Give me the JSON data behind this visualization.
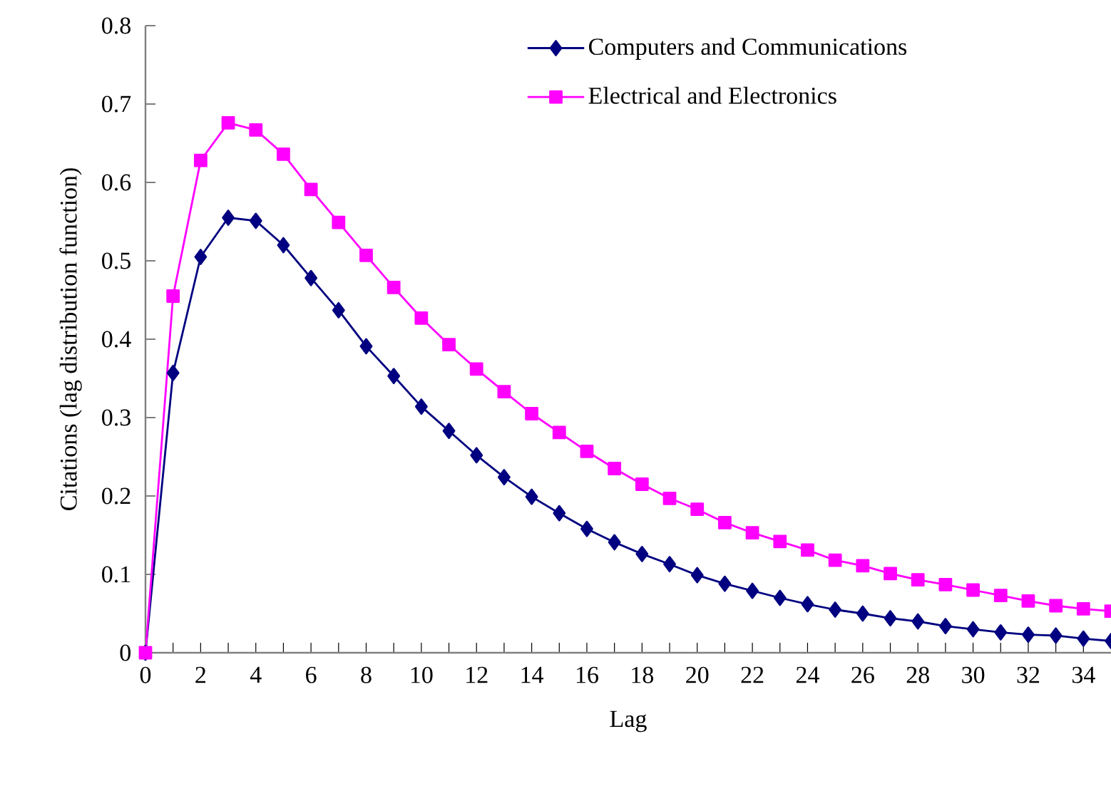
{
  "chart_data": {
    "type": "line",
    "xlabel": "Lag",
    "ylabel": "Citations  (lag distribution function)",
    "x": [
      0,
      1,
      2,
      3,
      4,
      5,
      6,
      7,
      8,
      9,
      10,
      11,
      12,
      13,
      14,
      15,
      16,
      17,
      18,
      19,
      20,
      21,
      22,
      23,
      24,
      25,
      26,
      27,
      28,
      29,
      30,
      31,
      32,
      33,
      34,
      35
    ],
    "series": [
      {
        "name": "Computers and Communications",
        "color": "#000080",
        "marker": "diamond",
        "values": [
          0,
          0.357,
          0.505,
          0.555,
          0.551,
          0.52,
          0.478,
          0.437,
          0.391,
          0.353,
          0.314,
          0.283,
          0.252,
          0.224,
          0.199,
          0.178,
          0.158,
          0.141,
          0.126,
          0.113,
          0.099,
          0.088,
          0.079,
          0.07,
          0.062,
          0.055,
          0.05,
          0.044,
          0.04,
          0.034,
          0.03,
          0.026,
          0.023,
          0.022,
          0.018,
          0.015
        ]
      },
      {
        "name": "Electrical and Electronics",
        "color": "#ff00ff",
        "marker": "square",
        "values": [
          0,
          0.455,
          0.628,
          0.676,
          0.667,
          0.636,
          0.591,
          0.549,
          0.507,
          0.466,
          0.427,
          0.393,
          0.362,
          0.333,
          0.305,
          0.281,
          0.257,
          0.235,
          0.215,
          0.197,
          0.183,
          0.166,
          0.153,
          0.142,
          0.131,
          0.118,
          0.111,
          0.101,
          0.093,
          0.087,
          0.08,
          0.073,
          0.066,
          0.06,
          0.056,
          0.053
        ]
      }
    ],
    "xlim": [
      0,
      35
    ],
    "ylim": [
      0,
      0.8
    ],
    "xticks": [
      0,
      {
        "value": 1,
        "label": null
      },
      2,
      {
        "value": 3,
        "label": null
      },
      4,
      {
        "value": 5,
        "label": null
      },
      6,
      {
        "value": 7,
        "label": null
      },
      8,
      {
        "value": 9,
        "label": null
      },
      10,
      {
        "value": 11,
        "label": null
      },
      12,
      {
        "value": 13,
        "label": null
      },
      14,
      {
        "value": 15,
        "label": null
      },
      16,
      {
        "value": 17,
        "label": null
      },
      18,
      {
        "value": 19,
        "label": null
      },
      20,
      {
        "value": 21,
        "label": null
      },
      22,
      {
        "value": 23,
        "label": null
      },
      24,
      {
        "value": 25,
        "label": null
      },
      26,
      {
        "value": 27,
        "label": null
      },
      28,
      {
        "value": 29,
        "label": null
      },
      30,
      {
        "value": 31,
        "label": null
      },
      32,
      {
        "value": 33,
        "label": null
      },
      34
    ],
    "yticks": [
      0,
      0.1,
      0.2,
      0.3,
      0.4,
      0.5,
      0.6,
      0.7,
      0.8
    ],
    "grid": false,
    "legend": "top right",
    "line_style": "solid"
  }
}
